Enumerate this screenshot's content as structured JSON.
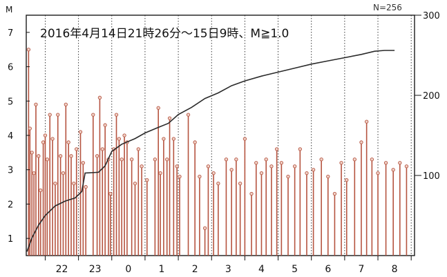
{
  "header": {
    "title_fragment": "M=1.0 ... N=256",
    "count_label": "N=256"
  },
  "chart_data": {
    "type": "bar",
    "title": "2016年4月14日21時26分〜15日9時、M≧1.0",
    "ylabel": "M",
    "ylim": [
      0.5,
      7.5
    ],
    "yticks": [
      "1",
      "2",
      "3",
      "4",
      "5",
      "6",
      "7"
    ],
    "y2ticks": [
      "100",
      "200",
      "300"
    ],
    "y2lim": [
      0,
      300
    ],
    "xlim": [
      21.43,
      33.1
    ],
    "xticks": [
      {
        "label": "22",
        "x": 22.5
      },
      {
        "label": "23",
        "x": 23.5
      },
      {
        "label": "0",
        "x": 24.5
      },
      {
        "label": "1",
        "x": 25.5
      },
      {
        "label": "2",
        "x": 26.5
      },
      {
        "label": "3",
        "x": 27.5
      },
      {
        "label": "4",
        "x": 28.5
      },
      {
        "label": "5",
        "x": 29.5
      },
      {
        "label": "6",
        "x": 30.5
      },
      {
        "label": "7",
        "x": 31.5
      },
      {
        "label": "8",
        "x": 32.5
      }
    ],
    "hour_lines": [
      22,
      23,
      24,
      25,
      26,
      27,
      28,
      29,
      30,
      31,
      32,
      33
    ],
    "series": [
      {
        "kind": "stem",
        "color": "#b5533f",
        "points": [
          [
            21.5,
            6.5
          ],
          [
            21.54,
            4.2
          ],
          [
            21.6,
            3.5
          ],
          [
            21.66,
            2.9
          ],
          [
            21.72,
            4.9
          ],
          [
            21.8,
            3.4
          ],
          [
            21.86,
            2.4
          ],
          [
            21.94,
            3.8
          ],
          [
            22.0,
            4.0
          ],
          [
            22.06,
            3.3
          ],
          [
            22.14,
            4.6
          ],
          [
            22.22,
            3.9
          ],
          [
            22.3,
            2.6
          ],
          [
            22.38,
            4.6
          ],
          [
            22.46,
            3.4
          ],
          [
            22.54,
            2.9
          ],
          [
            22.62,
            4.9
          ],
          [
            22.7,
            3.8
          ],
          [
            22.78,
            3.4
          ],
          [
            22.86,
            2.6
          ],
          [
            22.94,
            3.6
          ],
          [
            23.06,
            4.1
          ],
          [
            23.14,
            3.2
          ],
          [
            23.22,
            2.5
          ],
          [
            23.44,
            4.6
          ],
          [
            23.56,
            3.4
          ],
          [
            23.64,
            5.1
          ],
          [
            23.72,
            3.6
          ],
          [
            23.8,
            4.3
          ],
          [
            23.9,
            3.3
          ],
          [
            23.96,
            2.3
          ],
          [
            24.06,
            3.6
          ],
          [
            24.14,
            4.6
          ],
          [
            24.22,
            3.9
          ],
          [
            24.3,
            3.3
          ],
          [
            24.38,
            4.0
          ],
          [
            24.46,
            3.8
          ],
          [
            24.6,
            3.3
          ],
          [
            24.7,
            2.6
          ],
          [
            24.8,
            3.6
          ],
          [
            24.9,
            3.1
          ],
          [
            25.06,
            2.7
          ],
          [
            25.3,
            3.3
          ],
          [
            25.4,
            4.8
          ],
          [
            25.46,
            2.9
          ],
          [
            25.56,
            3.9
          ],
          [
            25.66,
            3.3
          ],
          [
            25.74,
            4.5
          ],
          [
            25.86,
            3.9
          ],
          [
            25.96,
            3.1
          ],
          [
            26.04,
            2.8
          ],
          [
            26.3,
            4.6
          ],
          [
            26.5,
            3.8
          ],
          [
            26.64,
            2.8
          ],
          [
            26.8,
            1.3
          ],
          [
            26.9,
            3.1
          ],
          [
            27.06,
            2.9
          ],
          [
            27.2,
            2.6
          ],
          [
            27.44,
            3.3
          ],
          [
            27.6,
            3.0
          ],
          [
            27.74,
            3.3
          ],
          [
            27.86,
            2.6
          ],
          [
            28.0,
            3.9
          ],
          [
            28.2,
            2.3
          ],
          [
            28.34,
            3.2
          ],
          [
            28.5,
            2.9
          ],
          [
            28.64,
            3.3
          ],
          [
            28.8,
            3.1
          ],
          [
            28.96,
            3.6
          ],
          [
            29.1,
            3.2
          ],
          [
            29.3,
            2.8
          ],
          [
            29.5,
            3.1
          ],
          [
            29.66,
            3.6
          ],
          [
            29.86,
            2.9
          ],
          [
            30.06,
            3.0
          ],
          [
            30.3,
            3.3
          ],
          [
            30.5,
            2.8
          ],
          [
            30.7,
            2.3
          ],
          [
            30.9,
            3.2
          ],
          [
            31.06,
            2.7
          ],
          [
            31.3,
            3.3
          ],
          [
            31.5,
            3.8
          ],
          [
            31.66,
            4.4
          ],
          [
            31.82,
            3.3
          ],
          [
            32.0,
            2.9
          ],
          [
            32.24,
            3.2
          ],
          [
            32.46,
            3.0
          ],
          [
            32.66,
            3.2
          ],
          [
            32.86,
            3.1
          ]
        ]
      },
      {
        "kind": "cumulative",
        "color": "#2a2a2a",
        "points": [
          [
            21.45,
            5
          ],
          [
            21.6,
            22
          ],
          [
            21.8,
            38
          ],
          [
            22.0,
            50
          ],
          [
            22.3,
            62
          ],
          [
            22.6,
            68
          ],
          [
            22.9,
            72
          ],
          [
            23.1,
            80
          ],
          [
            23.2,
            103
          ],
          [
            23.6,
            104
          ],
          [
            23.8,
            112
          ],
          [
            24.0,
            130
          ],
          [
            24.3,
            139
          ],
          [
            24.7,
            146
          ],
          [
            25.0,
            153
          ],
          [
            25.4,
            160
          ],
          [
            25.7,
            165
          ],
          [
            26.0,
            176
          ],
          [
            26.4,
            185
          ],
          [
            26.8,
            196
          ],
          [
            27.2,
            203
          ],
          [
            27.6,
            212
          ],
          [
            28.0,
            218
          ],
          [
            28.5,
            224
          ],
          [
            29.0,
            229
          ],
          [
            29.5,
            234
          ],
          [
            30.0,
            239
          ],
          [
            30.5,
            243
          ],
          [
            31.0,
            247
          ],
          [
            31.5,
            251
          ],
          [
            31.9,
            255
          ],
          [
            32.2,
            256
          ],
          [
            32.5,
            256
          ]
        ]
      }
    ]
  }
}
